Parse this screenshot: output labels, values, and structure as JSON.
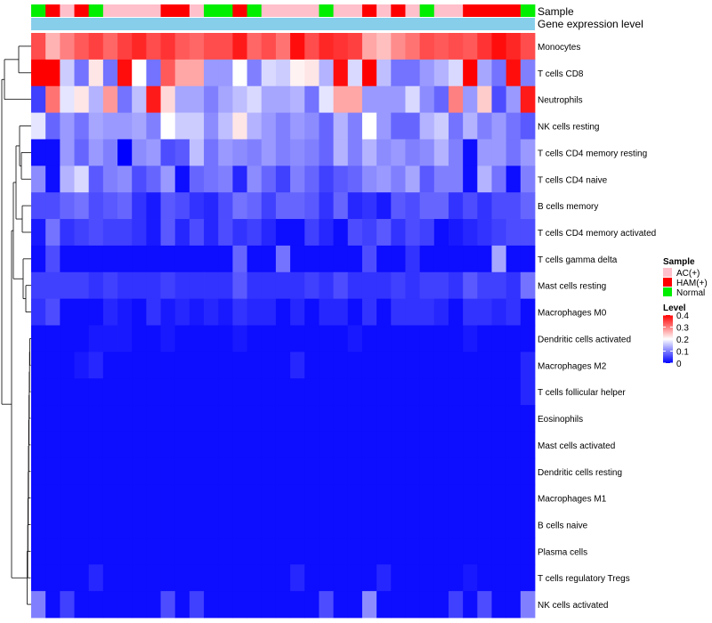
{
  "chart_data": {
    "type": "heatmap",
    "annotations": {
      "sample_label": "Sample",
      "expression_label": "Gene expression level",
      "samples": [
        "Normal",
        "HAM(+)",
        "AC(+)",
        "HAM(+)",
        "Normal",
        "AC(+)",
        "AC(+)",
        "AC(+)",
        "AC(+)",
        "HAM(+)",
        "HAM(+)",
        "AC(+)",
        "Normal",
        "Normal",
        "HAM(+)",
        "Normal",
        "AC(+)",
        "AC(+)",
        "AC(+)",
        "AC(+)",
        "Normal",
        "AC(+)",
        "AC(+)",
        "HAM(+)",
        "AC(+)",
        "HAM(+)",
        "AC(+)",
        "Normal",
        "AC(+)",
        "AC(+)",
        "HAM(+)",
        "HAM(+)",
        "HAM(+)",
        "HAM(+)",
        "Normal"
      ]
    },
    "rows": [
      "Monocytes",
      "T cells CD8",
      "Neutrophils",
      "NK cells resting",
      "T cells CD4 memory resting",
      "T cells CD4 naive",
      "B cells memory",
      "T cells CD4 memory activated",
      "T cells gamma delta",
      "Mast cells resting",
      "Macrophages M0",
      "Dendritic cells activated",
      "Macrophages M2",
      "T cells follicular helper",
      "Eosinophils",
      "Mast cells activated",
      "Dendritic cells resting",
      "Macrophages M1",
      "B cells naive",
      "Plasma cells",
      "T cells regulatory  Tregs",
      "NK cells activated"
    ],
    "values": [
      [
        0.34,
        0.26,
        0.3,
        0.33,
        0.35,
        0.32,
        0.35,
        0.37,
        0.34,
        0.36,
        0.33,
        0.32,
        0.34,
        0.34,
        0.38,
        0.32,
        0.34,
        0.31,
        0.39,
        0.34,
        0.37,
        0.36,
        0.35,
        0.27,
        0.25,
        0.29,
        0.31,
        0.34,
        0.33,
        0.34,
        0.33,
        0.36,
        0.39,
        0.37,
        0.34
      ],
      [
        0.4,
        0.4,
        0.16,
        0.09,
        0.22,
        0.09,
        0.39,
        0.2,
        0.09,
        0.33,
        0.27,
        0.27,
        0.12,
        0.12,
        0.2,
        0.1,
        0.17,
        0.16,
        0.21,
        0.22,
        0.14,
        0.39,
        0.17,
        0.4,
        0.15,
        0.09,
        0.09,
        0.12,
        0.14,
        0.17,
        0.4,
        0.13,
        0.09,
        0.39,
        0.1
      ],
      [
        0.05,
        0.31,
        0.18,
        0.22,
        0.14,
        0.28,
        0.09,
        0.15,
        0.38,
        0.23,
        0.13,
        0.13,
        0.1,
        0.13,
        0.15,
        0.17,
        0.13,
        0.13,
        0.14,
        0.09,
        0.18,
        0.27,
        0.27,
        0.12,
        0.12,
        0.12,
        0.17,
        0.11,
        0.08,
        0.3,
        0.12,
        0.24,
        0.06,
        0.12,
        0.38
      ],
      [
        0.18,
        0.08,
        0.12,
        0.09,
        0.13,
        0.12,
        0.12,
        0.13,
        0.1,
        0.2,
        0.16,
        0.16,
        0.11,
        0.15,
        0.22,
        0.14,
        0.12,
        0.1,
        0.12,
        0.11,
        0.08,
        0.14,
        0.1,
        0.2,
        0.12,
        0.08,
        0.08,
        0.14,
        0.16,
        0.09,
        0.14,
        0.1,
        0.12,
        0.09,
        0.07
      ],
      [
        0.01,
        0.01,
        0.12,
        0.08,
        0.12,
        0.1,
        0.0,
        0.11,
        0.12,
        0.06,
        0.07,
        0.15,
        0.09,
        0.12,
        0.11,
        0.1,
        0.12,
        0.1,
        0.11,
        0.1,
        0.08,
        0.14,
        0.1,
        0.14,
        0.11,
        0.12,
        0.1,
        0.11,
        0.14,
        0.1,
        0.01,
        0.12,
        0.12,
        0.09,
        0.12
      ],
      [
        0.11,
        0.01,
        0.14,
        0.17,
        0.07,
        0.1,
        0.11,
        0.06,
        0.08,
        0.12,
        0.01,
        0.08,
        0.09,
        0.1,
        0.03,
        0.11,
        0.08,
        0.05,
        0.1,
        0.08,
        0.05,
        0.07,
        0.08,
        0.11,
        0.12,
        0.1,
        0.13,
        0.07,
        0.1,
        0.1,
        0.01,
        0.14,
        0.09,
        0.01,
        0.1
      ],
      [
        0.06,
        0.06,
        0.08,
        0.09,
        0.06,
        0.07,
        0.08,
        0.04,
        0.02,
        0.07,
        0.06,
        0.04,
        0.03,
        0.06,
        0.09,
        0.08,
        0.05,
        0.08,
        0.08,
        0.07,
        0.04,
        0.08,
        0.03,
        0.04,
        0.02,
        0.07,
        0.06,
        0.08,
        0.08,
        0.04,
        0.06,
        0.04,
        0.06,
        0.06,
        0.08
      ],
      [
        0.02,
        0.09,
        0.04,
        0.05,
        0.06,
        0.05,
        0.05,
        0.04,
        0.02,
        0.07,
        0.03,
        0.06,
        0.03,
        0.06,
        0.04,
        0.05,
        0.03,
        0.01,
        0.01,
        0.05,
        0.03,
        0.01,
        0.06,
        0.05,
        0.07,
        0.04,
        0.06,
        0.05,
        0.01,
        0.02,
        0.03,
        0.04,
        0.05,
        0.06,
        0.06
      ],
      [
        0.01,
        0.06,
        0.01,
        0.01,
        0.01,
        0.01,
        0.01,
        0.01,
        0.01,
        0.01,
        0.01,
        0.01,
        0.01,
        0.01,
        0.08,
        0.01,
        0.01,
        0.09,
        0.01,
        0.01,
        0.01,
        0.01,
        0.01,
        0.06,
        0.01,
        0.01,
        0.04,
        0.01,
        0.01,
        0.01,
        0.01,
        0.01,
        0.13,
        0.01,
        0.01
      ],
      [
        0.05,
        0.05,
        0.05,
        0.05,
        0.04,
        0.05,
        0.04,
        0.04,
        0.04,
        0.05,
        0.04,
        0.04,
        0.04,
        0.04,
        0.07,
        0.04,
        0.04,
        0.04,
        0.04,
        0.05,
        0.04,
        0.06,
        0.04,
        0.04,
        0.04,
        0.05,
        0.04,
        0.05,
        0.05,
        0.04,
        0.07,
        0.05,
        0.05,
        0.04,
        0.09
      ],
      [
        0.04,
        0.06,
        0.01,
        0.01,
        0.01,
        0.03,
        0.02,
        0.01,
        0.04,
        0.02,
        0.03,
        0.02,
        0.03,
        0.02,
        0.04,
        0.03,
        0.03,
        0.01,
        0.03,
        0.01,
        0.03,
        0.03,
        0.01,
        0.04,
        0.01,
        0.04,
        0.04,
        0.04,
        0.03,
        0.01,
        0.04,
        0.04,
        0.03,
        0.04,
        0.01
      ],
      [
        0.01,
        0.01,
        0.01,
        0.01,
        0.02,
        0.02,
        0.02,
        0.01,
        0.01,
        0.02,
        0.01,
        0.01,
        0.01,
        0.01,
        0.02,
        0.01,
        0.01,
        0.01,
        0.01,
        0.01,
        0.01,
        0.01,
        0.02,
        0.01,
        0.01,
        0.01,
        0.01,
        0.01,
        0.01,
        0.01,
        0.02,
        0.01,
        0.01,
        0.01,
        0.01
      ],
      [
        0.01,
        0.01,
        0.01,
        0.02,
        0.03,
        0.01,
        0.01,
        0.01,
        0.01,
        0.01,
        0.01,
        0.01,
        0.01,
        0.01,
        0.01,
        0.01,
        0.01,
        0.01,
        0.03,
        0.01,
        0.01,
        0.01,
        0.01,
        0.01,
        0.01,
        0.01,
        0.01,
        0.01,
        0.01,
        0.01,
        0.01,
        0.01,
        0.01,
        0.01,
        0.03
      ],
      [
        0.01,
        0.01,
        0.01,
        0.01,
        0.01,
        0.01,
        0.01,
        0.01,
        0.01,
        0.01,
        0.01,
        0.01,
        0.01,
        0.01,
        0.01,
        0.01,
        0.01,
        0.01,
        0.01,
        0.01,
        0.01,
        0.01,
        0.01,
        0.01,
        0.01,
        0.01,
        0.01,
        0.01,
        0.01,
        0.01,
        0.01,
        0.01,
        0.01,
        0.01,
        0.03
      ],
      [
        0.01,
        0.01,
        0.01,
        0.01,
        0.01,
        0.01,
        0.01,
        0.01,
        0.01,
        0.01,
        0.01,
        0.01,
        0.01,
        0.01,
        0.01,
        0.01,
        0.01,
        0.01,
        0.01,
        0.01,
        0.01,
        0.01,
        0.01,
        0.01,
        0.01,
        0.01,
        0.01,
        0.01,
        0.01,
        0.01,
        0.01,
        0.01,
        0.01,
        0.01,
        0.01
      ],
      [
        0.01,
        0.01,
        0.01,
        0.01,
        0.01,
        0.01,
        0.01,
        0.01,
        0.01,
        0.01,
        0.01,
        0.01,
        0.01,
        0.01,
        0.01,
        0.01,
        0.01,
        0.01,
        0.01,
        0.01,
        0.01,
        0.01,
        0.01,
        0.01,
        0.01,
        0.01,
        0.01,
        0.01,
        0.01,
        0.01,
        0.01,
        0.01,
        0.01,
        0.01,
        0.01
      ],
      [
        0.01,
        0.01,
        0.01,
        0.01,
        0.01,
        0.01,
        0.01,
        0.01,
        0.01,
        0.01,
        0.01,
        0.01,
        0.01,
        0.01,
        0.01,
        0.01,
        0.01,
        0.01,
        0.01,
        0.01,
        0.01,
        0.01,
        0.01,
        0.01,
        0.01,
        0.01,
        0.01,
        0.01,
        0.01,
        0.01,
        0.01,
        0.01,
        0.01,
        0.01,
        0.01
      ],
      [
        0.01,
        0.01,
        0.01,
        0.01,
        0.01,
        0.01,
        0.01,
        0.01,
        0.01,
        0.01,
        0.01,
        0.01,
        0.01,
        0.01,
        0.01,
        0.01,
        0.01,
        0.01,
        0.01,
        0.01,
        0.01,
        0.01,
        0.01,
        0.01,
        0.01,
        0.01,
        0.01,
        0.01,
        0.01,
        0.01,
        0.01,
        0.01,
        0.01,
        0.01,
        0.01
      ],
      [
        0.01,
        0.01,
        0.01,
        0.01,
        0.01,
        0.01,
        0.01,
        0.01,
        0.01,
        0.01,
        0.01,
        0.01,
        0.01,
        0.01,
        0.01,
        0.01,
        0.01,
        0.01,
        0.01,
        0.01,
        0.01,
        0.01,
        0.01,
        0.01,
        0.01,
        0.01,
        0.01,
        0.01,
        0.01,
        0.01,
        0.01,
        0.01,
        0.01,
        0.01,
        0.01
      ],
      [
        0.01,
        0.01,
        0.01,
        0.01,
        0.01,
        0.01,
        0.01,
        0.01,
        0.01,
        0.01,
        0.01,
        0.01,
        0.01,
        0.01,
        0.01,
        0.01,
        0.01,
        0.01,
        0.01,
        0.01,
        0.01,
        0.01,
        0.01,
        0.01,
        0.01,
        0.01,
        0.01,
        0.01,
        0.01,
        0.01,
        0.01,
        0.01,
        0.01,
        0.01,
        0.01
      ],
      [
        0.01,
        0.01,
        0.01,
        0.01,
        0.03,
        0.01,
        0.01,
        0.01,
        0.01,
        0.01,
        0.01,
        0.01,
        0.01,
        0.01,
        0.01,
        0.01,
        0.01,
        0.01,
        0.03,
        0.01,
        0.01,
        0.01,
        0.01,
        0.01,
        0.03,
        0.01,
        0.01,
        0.01,
        0.01,
        0.01,
        0.02,
        0.01,
        0.01,
        0.01,
        0.01
      ],
      [
        0.1,
        0.01,
        0.05,
        0.01,
        0.01,
        0.01,
        0.01,
        0.01,
        0.01,
        0.06,
        0.01,
        0.05,
        0.01,
        0.01,
        0.01,
        0.01,
        0.01,
        0.01,
        0.01,
        0.01,
        0.06,
        0.01,
        0.01,
        0.11,
        0.01,
        0.01,
        0.01,
        0.01,
        0.01,
        0.05,
        0.01,
        0.06,
        0.01,
        0.01,
        0.1
      ]
    ],
    "legend": {
      "sample": {
        "title": "Sample",
        "entries": [
          {
            "label": "AC(+)",
            "color": "#ffc0cb"
          },
          {
            "label": "HAM(+)",
            "color": "#ff0000"
          },
          {
            "label": "Normal",
            "color": "#00ee00"
          }
        ]
      },
      "level": {
        "title": "Level",
        "ticks": [
          0.4,
          0.3,
          0.2,
          0.1,
          0
        ],
        "tick_labels": [
          "0.4",
          "0.3",
          "0.2",
          "0.1",
          "0"
        ],
        "range": [
          0,
          0.4
        ]
      }
    },
    "colors": {
      "low": "#0000ff",
      "mid": "#ffffff",
      "high": "#ff0000",
      "expression_bar": "#87ceeb",
      "AC(+)": "#ffc0cb",
      "HAM(+)": "#ff0000",
      "Normal": "#00ee00"
    }
  }
}
